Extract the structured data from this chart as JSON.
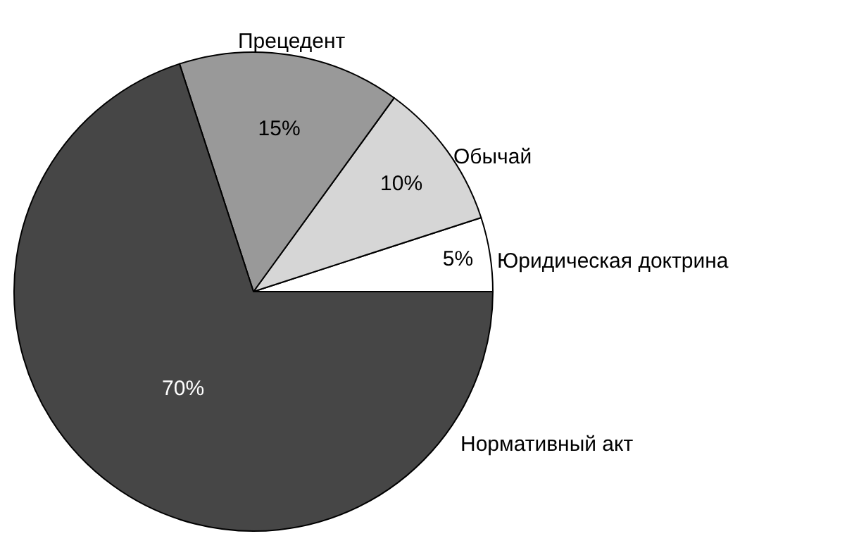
{
  "chart_data": {
    "type": "pie",
    "categories": [
      "Юридическая доктрина",
      "Обычай",
      "Прецедент",
      "Нормативный акт"
    ],
    "values": [
      5,
      10,
      15,
      70
    ],
    "colors": [
      "#ffffff",
      "#d6d6d6",
      "#999999",
      "#464646"
    ],
    "value_labels": [
      "5%",
      "10%",
      "15%",
      "70%"
    ],
    "legend": false
  }
}
